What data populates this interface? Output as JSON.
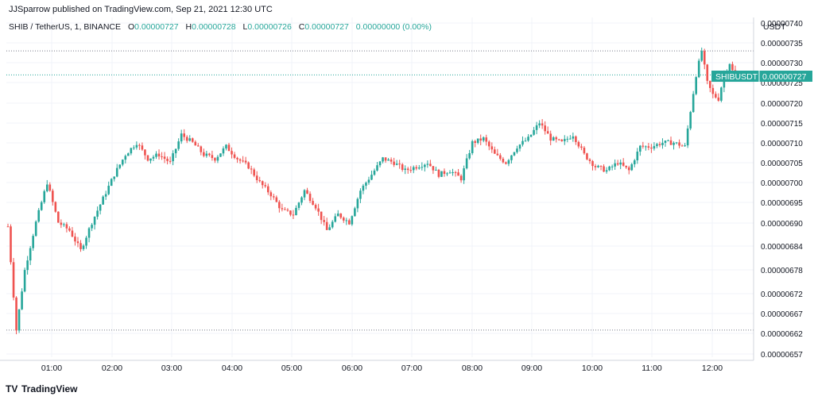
{
  "header": {
    "published_by": "JJSparrow published on TradingView.com, Sep 21, 2021 12:30 UTC"
  },
  "legend": {
    "symbol": "SHIB / TetherUS, 1, BINANCE",
    "open_label": "O",
    "open": "0.00000727",
    "high_label": "H",
    "high": "0.00000728",
    "low_label": "L",
    "low": "0.00000726",
    "close_label": "C",
    "close": "0.00000727",
    "change": "0.00000000 (0.00%)"
  },
  "footer": {
    "brand": "TradingView"
  },
  "colors": {
    "up": "#26a69a",
    "down": "#ef5350",
    "grid": "#f0f3fa",
    "axis_text": "#131722",
    "price_label_bg": "#26a69a",
    "dotted_line": "#787b86",
    "current_line": "#26a69a"
  },
  "chart_data": {
    "type": "candlestick",
    "currency": "USDT",
    "price_label": {
      "symbol": "SHIBUSDT",
      "value": "0.00000727"
    },
    "y_ticks": [
      "0.00000740",
      "0.00000735",
      "0.00000730",
      "0.00000725",
      "0.00000720",
      "0.00000715",
      "0.00000710",
      "0.00000705",
      "0.00000700",
      "0.00000695",
      "0.00000690",
      "0.00000684",
      "0.00000678",
      "0.00000672",
      "0.00000667",
      "0.00000662",
      "0.00000657"
    ],
    "x_ticks": [
      "01:00",
      "02:00",
      "03:00",
      "04:00",
      "05:00",
      "06:00",
      "07:00",
      "08:00",
      "09:00",
      "10:00",
      "11:00",
      "12:00"
    ],
    "session_high": 7.33e-06,
    "session_low": 6.63e-06,
    "last_price": 7.27e-06,
    "close_path": [
      [
        0,
        6.89e-06
      ],
      [
        3,
        6.63e-06
      ],
      [
        6,
        6.78e-06
      ],
      [
        10,
        6.9e-06
      ],
      [
        14,
        7e-06
      ],
      [
        18,
        6.9e-06
      ],
      [
        22,
        6.88e-06
      ],
      [
        26,
        6.83e-06
      ],
      [
        30,
        6.9e-06
      ],
      [
        34,
        6.96e-06
      ],
      [
        38,
        7.02e-06
      ],
      [
        42,
        7.07e-06
      ],
      [
        46,
        7.1e-06
      ],
      [
        50,
        7.06e-06
      ],
      [
        54,
        7.07e-06
      ],
      [
        58,
        7.05e-06
      ],
      [
        62,
        7.12e-06
      ],
      [
        66,
        7.1e-06
      ],
      [
        70,
        7.07e-06
      ],
      [
        74,
        7.06e-06
      ],
      [
        78,
        7.09e-06
      ],
      [
        82,
        7.06e-06
      ],
      [
        86,
        7.04e-06
      ],
      [
        90,
        7e-06
      ],
      [
        94,
        6.97e-06
      ],
      [
        98,
        6.93e-06
      ],
      [
        102,
        6.92e-06
      ],
      [
        106,
        6.98e-06
      ],
      [
        110,
        6.94e-06
      ],
      [
        114,
        6.88e-06
      ],
      [
        118,
        6.92e-06
      ],
      [
        122,
        6.9e-06
      ],
      [
        126,
        6.98e-06
      ],
      [
        130,
        7.02e-06
      ],
      [
        134,
        7.06e-06
      ],
      [
        138,
        7.05e-06
      ],
      [
        142,
        7.03e-06
      ],
      [
        146,
        7.04e-06
      ],
      [
        150,
        7.05e-06
      ],
      [
        154,
        7.02e-06
      ],
      [
        158,
        7.03e-06
      ],
      [
        162,
        7.01e-06
      ],
      [
        166,
        7.1e-06
      ],
      [
        170,
        7.11e-06
      ],
      [
        174,
        7.07e-06
      ],
      [
        178,
        7.05e-06
      ],
      [
        182,
        7.09e-06
      ],
      [
        186,
        7.11e-06
      ],
      [
        190,
        7.15e-06
      ],
      [
        194,
        7.11e-06
      ],
      [
        198,
        7.1e-06
      ],
      [
        202,
        7.12e-06
      ],
      [
        206,
        7.07e-06
      ],
      [
        210,
        7.04e-06
      ],
      [
        214,
        7.03e-06
      ],
      [
        218,
        7.05e-06
      ],
      [
        222,
        7.03e-06
      ],
      [
        226,
        7.09e-06
      ],
      [
        230,
        7.09e-06
      ],
      [
        234,
        7.1e-06
      ],
      [
        238,
        7.1e-06
      ],
      [
        242,
        7.09e-06
      ],
      [
        246,
        7.27e-06
      ],
      [
        248,
        7.33e-06
      ],
      [
        250,
        7.25e-06
      ],
      [
        252,
        7.22e-06
      ],
      [
        254,
        7.21e-06
      ],
      [
        256,
        7.27e-06
      ],
      [
        258,
        7.3e-06
      ],
      [
        260,
        7.26e-06
      ],
      [
        262,
        7.27e-06
      ]
    ],
    "bars": 263
  }
}
